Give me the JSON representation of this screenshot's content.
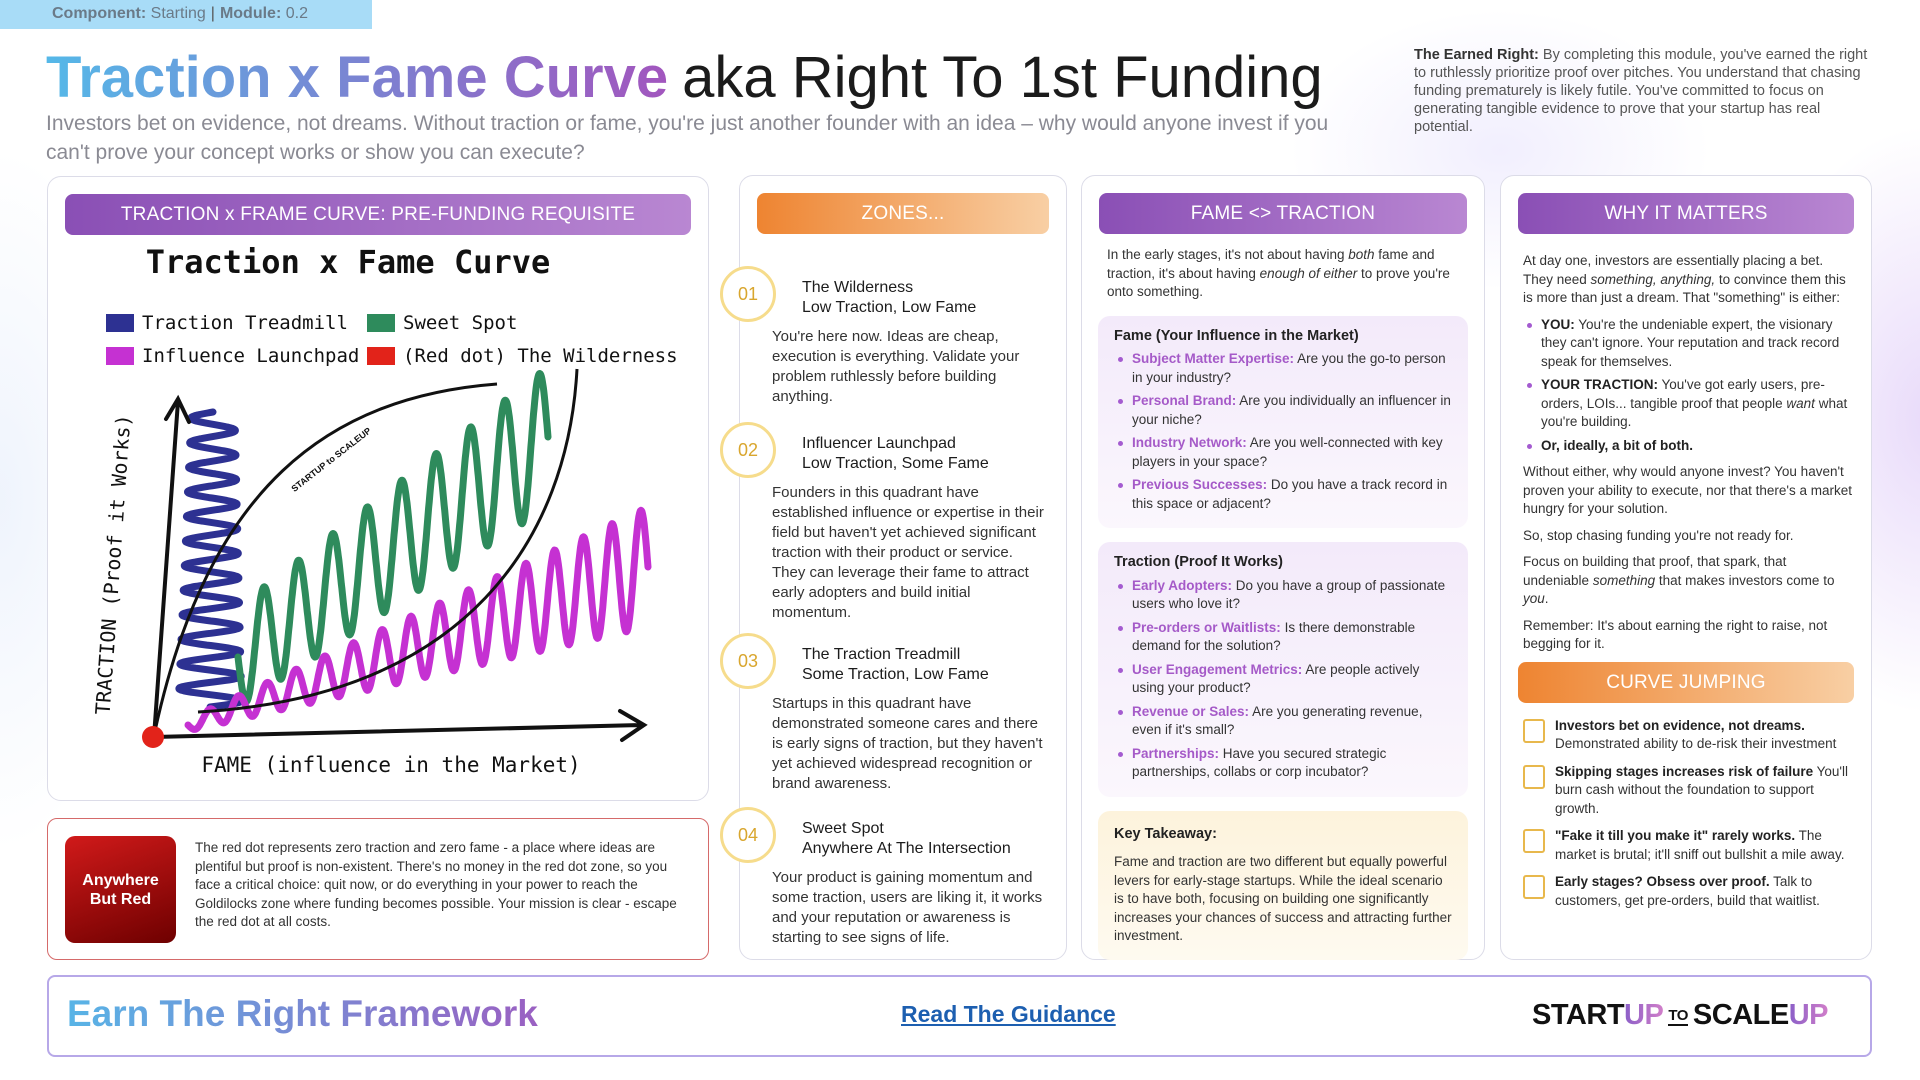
{
  "tag": {
    "items": [
      {
        "label": "Component:",
        "value": "Starting"
      },
      {
        "label": "Module:",
        "value": "0.2"
      }
    ],
    "separator": "|"
  },
  "header": {
    "title_highlight": "Traction x Fame Curve",
    "title_rest": "aka Right To 1st Funding",
    "subtitle": "Investors bet on evidence, not dreams. Without traction or fame, you're just another founder with an idea – why would anyone invest if you can't prove your concept works or show you can execute?"
  },
  "earned_right": {
    "label": "The Earned Right:",
    "text": "By completing this module, you've earned the right to ruthlessly prioritize proof over pitches. You understand that chasing funding prematurely is likely futile. You've committed to focus on generating tangible evidence to prove that your startup has real potential."
  },
  "curve_panel": {
    "heading": "TRACTION x FRAME CURVE: PRE-FUNDING REQUISITE",
    "chart": {
      "title": "Traction x Fame Curve",
      "legend": [
        {
          "label": "Traction Treadmill",
          "color": "#2d3192"
        },
        {
          "label": "Sweet Spot",
          "color": "#2e8b5c"
        },
        {
          "label": "Influence Launchpad",
          "color": "#c531d2"
        },
        {
          "label": "(Red dot) The Wilderness",
          "color": "#e2231a"
        }
      ],
      "y_axis_label": "TRACTION (Proof it Works)",
      "x_axis_label": "FAME (influence in the Market)",
      "watermark": "STARTUP to SCALEUP"
    }
  },
  "red_dot": {
    "badge": "Anywhere But Red",
    "text": "The red dot represents zero traction and zero fame - a place where ideas are plentiful but proof is non-existent. There's no money in the red dot zone, so you face a critical choice: quit now, or do everything in your power to reach the Goldilocks zone where funding becomes possible. Your mission is clear - escape the red dot at all costs."
  },
  "zones": {
    "heading": "ZONES...",
    "items": [
      {
        "number": "01",
        "title": "The Wilderness",
        "subtitle": "Low Traction, Low Fame",
        "text": "You're here now. Ideas are cheap, execution is everything. Validate your problem ruthlessly before building anything."
      },
      {
        "number": "02",
        "title": "Influencer Launchpad",
        "subtitle": "Low Traction, Some Fame",
        "text": "Founders in this quadrant have established influence or expertise in their field but haven't yet achieved significant traction with their product or service. They can leverage their fame to attract early adopters and build initial momentum."
      },
      {
        "number": "03",
        "title": "The Traction Treadmill",
        "subtitle": "Some Traction, Low Fame",
        "text": "Startups in this quadrant have demonstrated someone cares and there is early signs of  traction, but they haven't yet achieved widespread recognition or brand awareness."
      },
      {
        "number": "04",
        "title": "Sweet Spot",
        "subtitle": "Anywhere At The Intersection",
        "text": "Your product is gaining momentum and some traction, users are liking it, it works and your reputation or awareness is starting to see signs of life."
      }
    ]
  },
  "fame_traction": {
    "heading": "FAME <> TRACTION",
    "intro": [
      "In the early stages, it's not about having ",
      "both",
      " fame and traction, it's about having ",
      "enough of either",
      " to prove you're onto something."
    ],
    "fame": {
      "heading": "Fame (Your Influence in the Market)",
      "items": [
        {
          "label": "Subject Matter Expertise:",
          "text": "Are you the go-to person in your industry?"
        },
        {
          "label": "Personal Brand:",
          "text": "Are you individually an influencer in your niche?"
        },
        {
          "label": "Industry Network:",
          "text": "Are you well-connected with key players in your space?"
        },
        {
          "label": "Previous Successes:",
          "text": "Do you have a track record in this space or adjacent?"
        }
      ]
    },
    "traction": {
      "heading": "Traction (Proof It Works)",
      "items": [
        {
          "label": "Early Adopters:",
          "text": "Do you have a group of passionate users who love it?"
        },
        {
          "label": "Pre-orders or Waitlists:",
          "text": "Is there demonstrable demand for the solution?"
        },
        {
          "label": "User Engagement Metrics:",
          "text": "Are people actively using your product?"
        },
        {
          "label": "Revenue or Sales:",
          "text": "Are you generating revenue, even if it's small?"
        },
        {
          "label": "Partnerships:",
          "text": "Have you secured strategic partnerships, collabs or corp incubator?"
        }
      ]
    },
    "takeaway": {
      "heading": "Key Takeaway:",
      "text": "Fame and traction are two different but equally powerful levers for early-stage startups. While the ideal scenario is to have both, focusing on building one significantly increases your chances of success and attracting further investment."
    }
  },
  "why": {
    "heading": "WHY IT MATTERS",
    "intro": [
      "At day one, investors are essentially placing a bet. They need ",
      "something, anything,",
      " to convince them this is more than just a dream. That \"something\" is either:"
    ],
    "bullets": [
      {
        "label": "YOU:",
        "text": [
          "You're the undeniable expert, the visionary they can't ignore. Your reputation and track record speak for themselves."
        ]
      },
      {
        "label": "YOUR TRACTION:",
        "text": [
          "You've got early users, pre-orders, LOIs... tangible proof that people ",
          "want",
          " what you're building."
        ]
      },
      {
        "label": "Or, ideally, a bit of both."
      }
    ],
    "paragraphs": [
      [
        "Without either, why would anyone invest? You haven't proven your ability to execute, nor that there's a market hungry for your solution."
      ],
      [
        "So, stop chasing funding you're not ready for."
      ],
      [
        "Focus on building that proof, that spark, that undeniable ",
        "something",
        " that makes investors come to ",
        "you",
        "."
      ],
      [
        "Remember: It's about earning the right to raise, not begging for it."
      ]
    ]
  },
  "curve_jumping": {
    "heading": "CURVE JUMPING",
    "items": [
      {
        "bold": "Investors bet on evidence, not dreams.",
        "text": "Demonstrated ability to de-risk their investment"
      },
      {
        "bold": "Skipping stages increases risk of failure",
        "text": "You'll burn cash without the foundation to support growth."
      },
      {
        "bold": "\"Fake it till you make it\" rarely works.",
        "text": "The market is brutal; it'll sniff out bullshit a mile away."
      },
      {
        "bold": "Early stages? Obsess over proof.",
        "text": "Talk to customers, get pre-orders, build that waitlist."
      }
    ]
  },
  "footer": {
    "framework": "Earn The Right Framework",
    "link": "Read The Guidance",
    "logo": [
      "START",
      "UP",
      "TO",
      "SCALE",
      "UP"
    ]
  }
}
